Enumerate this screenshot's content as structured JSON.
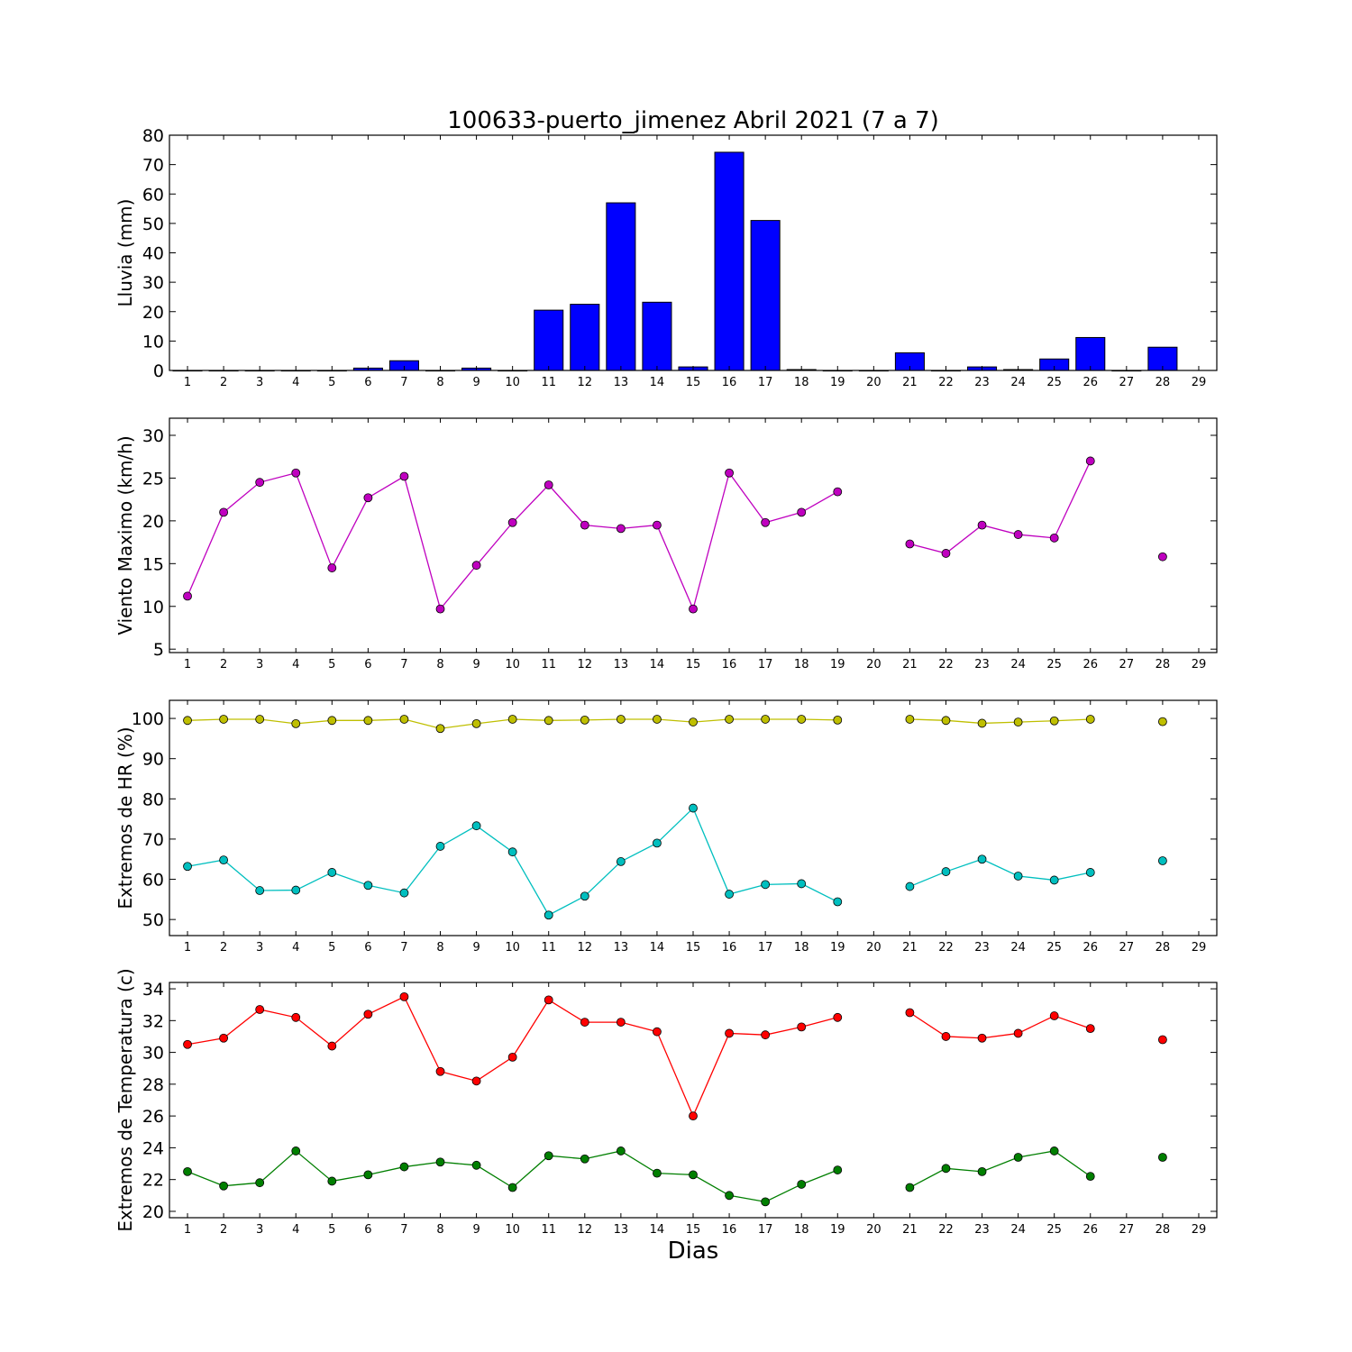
{
  "title": "100633-puerto_jimenez Abril 2021  (7 a 7)",
  "xlabel": "Dias",
  "chart_data": [
    {
      "type": "bar",
      "ylabel": "Lluvia (mm)",
      "ylim": [
        0,
        80
      ],
      "yticks": [
        0,
        10,
        20,
        30,
        40,
        50,
        60,
        70,
        80
      ],
      "xlim": [
        0.5,
        29.5
      ],
      "xticks": [
        1,
        2,
        3,
        4,
        5,
        6,
        7,
        8,
        9,
        10,
        11,
        12,
        13,
        14,
        15,
        16,
        17,
        18,
        19,
        20,
        21,
        22,
        23,
        24,
        25,
        26,
        27,
        28,
        29
      ],
      "color": "#0000ff",
      "x": [
        1,
        2,
        3,
        4,
        5,
        6,
        7,
        8,
        9,
        10,
        11,
        12,
        13,
        14,
        15,
        16,
        17,
        18,
        19,
        20,
        21,
        22,
        23,
        24,
        25,
        26,
        27,
        28,
        29
      ],
      "values": [
        0,
        0,
        0,
        0,
        0,
        0.8,
        3.3,
        0,
        0.8,
        0,
        20.5,
        22.5,
        57,
        23.2,
        1.2,
        74.2,
        51,
        0.3,
        0,
        0,
        6,
        0,
        1.2,
        0.3,
        3.9,
        11.2,
        0,
        7.9,
        null
      ]
    },
    {
      "type": "line",
      "ylabel": "Viento Maximo (km/h)",
      "ylim": [
        4.6,
        32
      ],
      "yticks": [
        5,
        10,
        15,
        20,
        25,
        30
      ],
      "xlim": [
        0.5,
        29.5
      ],
      "xticks": [
        1,
        2,
        3,
        4,
        5,
        6,
        7,
        8,
        9,
        10,
        11,
        12,
        13,
        14,
        15,
        16,
        17,
        18,
        19,
        20,
        21,
        22,
        23,
        24,
        25,
        26,
        27,
        28,
        29
      ],
      "x": [
        1,
        2,
        3,
        4,
        5,
        6,
        7,
        8,
        9,
        10,
        11,
        12,
        13,
        14,
        15,
        16,
        17,
        18,
        19,
        20,
        21,
        22,
        23,
        24,
        25,
        26,
        27,
        28,
        29
      ],
      "series": [
        {
          "color": "#bf00bf",
          "values": [
            11.2,
            21,
            24.5,
            25.6,
            14.5,
            22.7,
            25.2,
            9.7,
            14.8,
            19.8,
            24.2,
            19.5,
            19.1,
            19.5,
            9.7,
            25.6,
            19.8,
            21,
            23.4,
            null,
            17.3,
            16.2,
            19.5,
            18.4,
            18,
            27,
            null,
            15.8,
            null
          ]
        }
      ]
    },
    {
      "type": "line",
      "ylabel": "Extremos de HR (%)",
      "ylim": [
        46,
        104.5
      ],
      "yticks": [
        50,
        60,
        70,
        80,
        90,
        100
      ],
      "xlim": [
        0.5,
        29.5
      ],
      "xticks": [
        1,
        2,
        3,
        4,
        5,
        6,
        7,
        8,
        9,
        10,
        11,
        12,
        13,
        14,
        15,
        16,
        17,
        18,
        19,
        20,
        21,
        22,
        23,
        24,
        25,
        26,
        27,
        28,
        29
      ],
      "x": [
        1,
        2,
        3,
        4,
        5,
        6,
        7,
        8,
        9,
        10,
        11,
        12,
        13,
        14,
        15,
        16,
        17,
        18,
        19,
        20,
        21,
        22,
        23,
        24,
        25,
        26,
        27,
        28,
        29
      ],
      "series": [
        {
          "color": "#bfbf00",
          "values": [
            99.5,
            99.8,
            99.8,
            98.7,
            99.5,
            99.5,
            99.8,
            97.5,
            98.7,
            99.8,
            99.5,
            99.6,
            99.8,
            99.8,
            99.1,
            99.8,
            99.8,
            99.8,
            99.6,
            null,
            99.8,
            99.5,
            98.8,
            99.1,
            99.4,
            99.8,
            null,
            99.2,
            null
          ]
        },
        {
          "color": "#00bfbf",
          "values": [
            63.2,
            64.8,
            57.2,
            57.3,
            61.7,
            58.5,
            56.6,
            68.2,
            73.3,
            66.8,
            51.1,
            55.8,
            64.4,
            69,
            77.7,
            56.3,
            58.7,
            58.9,
            54.4,
            null,
            58.2,
            61.9,
            65,
            60.8,
            59.8,
            61.7,
            null,
            64.6,
            null
          ]
        }
      ]
    },
    {
      "type": "line",
      "ylabel": "Extremos de Temperatura (c)",
      "ylim": [
        19.6,
        34.4
      ],
      "yticks": [
        20,
        22,
        24,
        26,
        28,
        30,
        32,
        34
      ],
      "xlim": [
        0.5,
        29.5
      ],
      "xticks": [
        1,
        2,
        3,
        4,
        5,
        6,
        7,
        8,
        9,
        10,
        11,
        12,
        13,
        14,
        15,
        16,
        17,
        18,
        19,
        20,
        21,
        22,
        23,
        24,
        25,
        26,
        27,
        28,
        29
      ],
      "x": [
        1,
        2,
        3,
        4,
        5,
        6,
        7,
        8,
        9,
        10,
        11,
        12,
        13,
        14,
        15,
        16,
        17,
        18,
        19,
        20,
        21,
        22,
        23,
        24,
        25,
        26,
        27,
        28,
        29
      ],
      "series": [
        {
          "color": "#ff0000",
          "values": [
            30.5,
            30.9,
            32.7,
            32.2,
            30.4,
            32.4,
            33.5,
            28.8,
            28.2,
            29.7,
            33.3,
            31.9,
            31.9,
            31.3,
            26,
            31.2,
            31.1,
            31.6,
            32.2,
            null,
            32.5,
            31,
            30.9,
            31.2,
            32.3,
            31.5,
            null,
            30.8,
            null
          ]
        },
        {
          "color": "#007f00",
          "values": [
            22.5,
            21.6,
            21.8,
            23.8,
            21.9,
            22.3,
            22.8,
            23.1,
            22.9,
            21.5,
            23.5,
            23.3,
            23.8,
            22.4,
            22.3,
            21,
            20.6,
            21.7,
            22.6,
            null,
            21.5,
            22.7,
            22.5,
            23.4,
            23.8,
            22.2,
            null,
            23.4,
            null
          ]
        }
      ]
    }
  ]
}
